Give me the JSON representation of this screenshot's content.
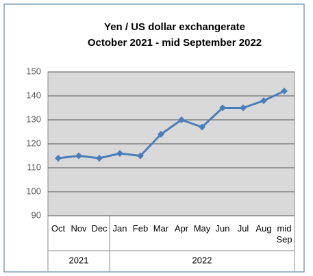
{
  "chart_data": {
    "type": "line",
    "title": "Yen / US dollar exchangerate",
    "subtitle": "October  2021 - mid September 2022",
    "categories": [
      "Oct",
      "Nov",
      "Dec",
      "Jan",
      "Feb",
      "Mar",
      "Apr",
      "May",
      "Jun",
      "Jul",
      "Aug",
      "mid Sep"
    ],
    "groups": [
      {
        "label": "2021",
        "count": 3
      },
      {
        "label": "2022",
        "count": 9
      }
    ],
    "series": [
      {
        "color": "#4a7ebb",
        "values": [
          114,
          115,
          114,
          116,
          115,
          124,
          130,
          127,
          135,
          135,
          138,
          142
        ]
      }
    ],
    "ylim": [
      90,
      150
    ],
    "yticks": [
      90,
      100,
      110,
      120,
      130,
      140,
      150
    ],
    "grid": true
  }
}
